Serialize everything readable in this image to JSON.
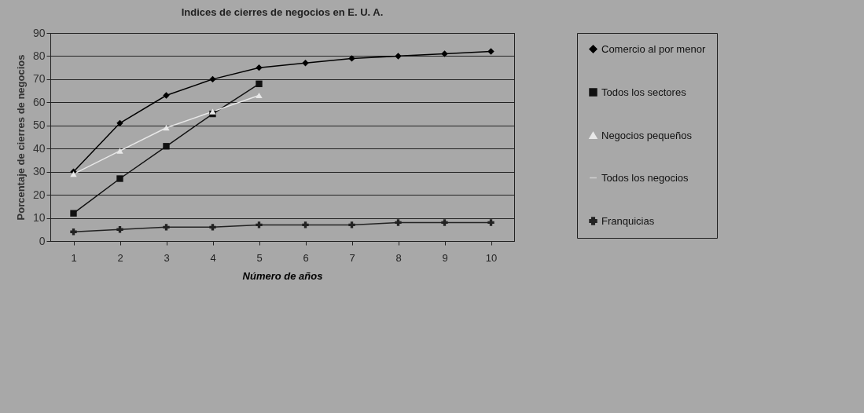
{
  "chart_data": {
    "type": "line",
    "title": "Indices de cierres de negocios en E. U. A.",
    "xlabel": "Número de años",
    "ylabel": "Porcentaje de cierres de negocios",
    "categories": [
      "1",
      "2",
      "3",
      "4",
      "5",
      "6",
      "7",
      "8",
      "9",
      "10"
    ],
    "series": [
      {
        "name": "Comercio al por menor",
        "color": "#000000",
        "marker": "diamond",
        "values": [
          30,
          51,
          63,
          70,
          75,
          77,
          79,
          80,
          81,
          82
        ]
      },
      {
        "name": "Todos los sectores",
        "color": "#111111",
        "marker": "square",
        "values": [
          12,
          27,
          41,
          55,
          68,
          null,
          null,
          null,
          null,
          null
        ]
      },
      {
        "name": "Negocios pequeños",
        "color": "#e8e8e8",
        "marker": "triangle",
        "values": [
          29,
          39,
          49,
          56,
          63,
          null,
          null,
          null,
          null,
          null
        ]
      },
      {
        "name": "Todos los negocios",
        "color": "#d0d0d0",
        "marker": "none",
        "values": [
          null,
          null,
          null,
          null,
          null,
          null,
          null,
          null,
          null,
          null
        ]
      },
      {
        "name": "Franquicias",
        "color": "#222222",
        "marker": "cross",
        "values": [
          4,
          5,
          6,
          6,
          7,
          7,
          7,
          8,
          8,
          8
        ]
      }
    ],
    "ylim": [
      0,
      90
    ],
    "yticks": [
      0,
      10,
      20,
      30,
      40,
      50,
      60,
      70,
      80,
      90
    ],
    "grid": "y",
    "legend": "right"
  }
}
